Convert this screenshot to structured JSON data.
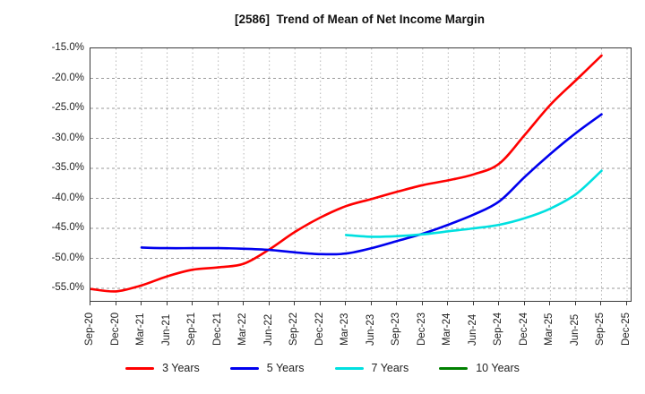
{
  "title": "[2586]  Trend of Mean of Net Income Margin",
  "chart_data": {
    "type": "line",
    "title": "[2586]  Trend of Mean of Net Income Margin",
    "xlabel": "",
    "ylabel": "",
    "ylim": [
      -57,
      -15
    ],
    "yticks": [
      -15,
      -20,
      -25,
      -30,
      -35,
      -40,
      -45,
      -50,
      -55
    ],
    "ytick_suffix": "%",
    "grid": true,
    "legend_position": "bottom",
    "categories": [
      "Sep-20",
      "Dec-20",
      "Mar-21",
      "Jun-21",
      "Sep-21",
      "Dec-21",
      "Mar-22",
      "Jun-22",
      "Sep-22",
      "Dec-22",
      "Mar-23",
      "Jun-23",
      "Sep-23",
      "Dec-23",
      "Mar-24",
      "Jun-24",
      "Sep-24",
      "Dec-24",
      "Mar-25",
      "Jun-25",
      "Sep-25",
      "Dec-25"
    ],
    "series": [
      {
        "name": "3 Years",
        "color": "#ff0000",
        "values": [
          -55.1,
          -55.5,
          -54.5,
          -53.0,
          -51.9,
          -51.5,
          -50.9,
          -48.5,
          -45.6,
          -43.2,
          -41.3,
          -40.1,
          -38.9,
          -37.8,
          -37.0,
          -36.0,
          -34.2,
          -29.4,
          -24.4,
          -20.3,
          -16.2,
          null
        ]
      },
      {
        "name": "5 Years",
        "color": "#0000ee",
        "values": [
          null,
          null,
          -48.2,
          -48.3,
          -48.3,
          -48.3,
          -48.4,
          -48.6,
          -49.0,
          -49.3,
          -49.2,
          -48.3,
          -47.1,
          -45.9,
          -44.4,
          -42.7,
          -40.5,
          -36.4,
          -32.6,
          -29.1,
          -26.0,
          null
        ]
      },
      {
        "name": "7 Years",
        "color": "#00e0e0",
        "values": [
          null,
          null,
          null,
          null,
          null,
          null,
          null,
          null,
          null,
          null,
          -46.1,
          -46.4,
          -46.3,
          -46.0,
          -45.5,
          -45.0,
          -44.4,
          -43.3,
          -41.7,
          -39.3,
          -35.4,
          null
        ]
      },
      {
        "name": "10 Years",
        "color": "#008000",
        "values": [
          null,
          null,
          null,
          null,
          null,
          null,
          null,
          null,
          null,
          null,
          null,
          null,
          null,
          null,
          null,
          null,
          null,
          null,
          null,
          null,
          null,
          null
        ]
      }
    ]
  }
}
